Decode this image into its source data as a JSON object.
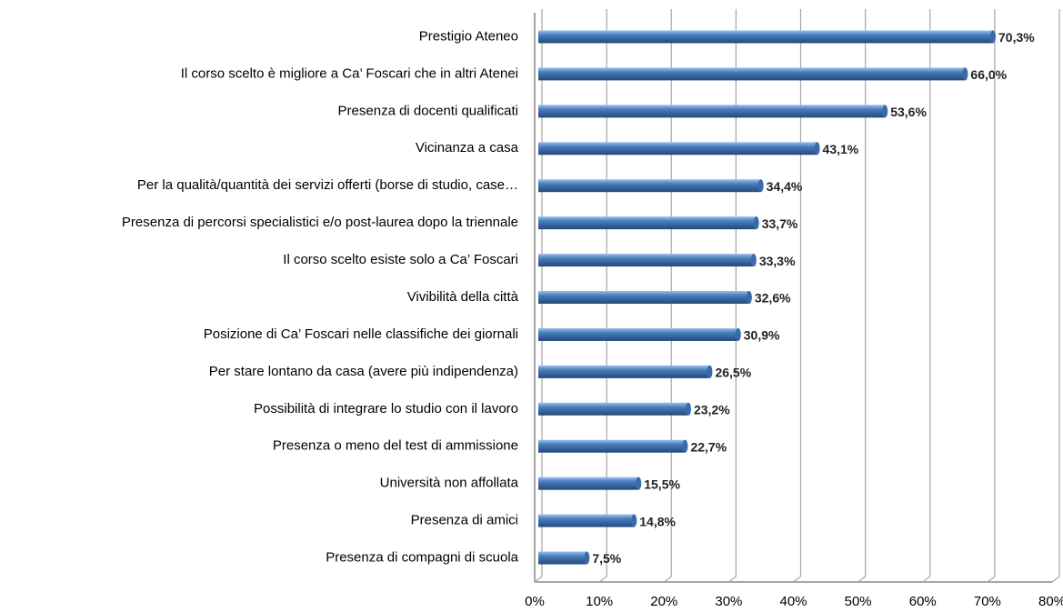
{
  "chart_data": {
    "type": "bar",
    "orientation": "horizontal",
    "categories": [
      "Prestigio Ateneo",
      "Il corso scelto è migliore a Ca’ Foscari che in altri Atenei",
      "Presenza di docenti qualificati",
      "Vicinanza a casa",
      "Per la qualità/quantità dei servizi offerti (borse di studio, case…",
      "Presenza di percorsi specialistici e/o post-laurea dopo la triennale",
      "Il corso scelto esiste solo a Ca’ Foscari",
      "Vivibilità della città",
      "Posizione di Ca’ Foscari nelle classifiche dei giornali",
      "Per stare lontano da casa (avere più indipendenza)",
      "Possibilità di integrare lo studio con il lavoro",
      "Presenza o meno del test di ammissione",
      "Università non affollata",
      "Presenza di amici",
      "Presenza di compagni di scuola"
    ],
    "values": [
      70.3,
      66.0,
      53.6,
      43.1,
      34.4,
      33.7,
      33.3,
      32.6,
      30.9,
      26.5,
      23.2,
      22.7,
      15.5,
      14.8,
      7.5
    ],
    "value_labels": [
      "70,3%",
      "66,0%",
      "53,6%",
      "43,1%",
      "34,4%",
      "33,7%",
      "33,3%",
      "32,6%",
      "30,9%",
      "26,5%",
      "23,2%",
      "22,7%",
      "15,5%",
      "14,8%",
      "7,5%"
    ],
    "color": "#4a7ebb",
    "xlim": [
      0,
      80
    ],
    "xticks": [
      {
        "value": 0,
        "label": "0%"
      },
      {
        "value": 10,
        "label": "10%"
      },
      {
        "value": 20,
        "label": "20%"
      },
      {
        "value": 30,
        "label": "30%"
      },
      {
        "value": 40,
        "label": "40%"
      },
      {
        "value": 50,
        "label": "50%"
      },
      {
        "value": 60,
        "label": "60%"
      },
      {
        "value": 70,
        "label": "70%"
      },
      {
        "value": 80,
        "label": "80%"
      }
    ],
    "grid": true
  }
}
